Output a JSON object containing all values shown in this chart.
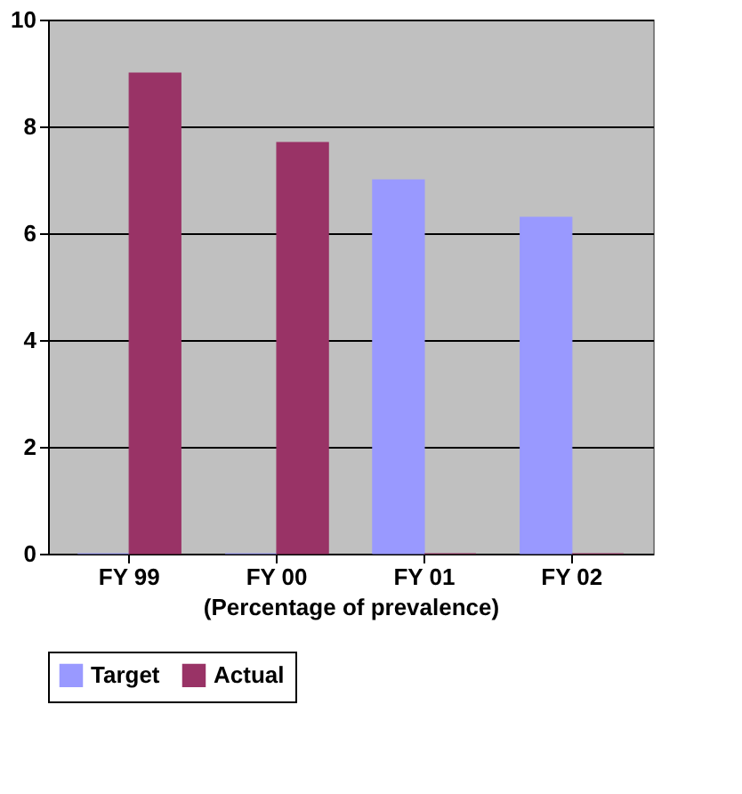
{
  "chart_data": {
    "type": "bar",
    "categories": [
      "FY 99",
      "FY 00",
      "FY 01",
      "FY 02"
    ],
    "xlabel": "(Percentage of prevalence)",
    "series": [
      {
        "name": "Target",
        "color": "#9999ff",
        "values": [
          0,
          0,
          7.0,
          6.3
        ]
      },
      {
        "name": "Actual",
        "color": "#993366",
        "values": [
          9.0,
          7.7,
          0,
          0
        ]
      }
    ],
    "ylim": [
      0,
      10
    ],
    "yticks": [
      0,
      2,
      4,
      6,
      8,
      10
    ],
    "grid": "y",
    "legend": "bottom"
  }
}
